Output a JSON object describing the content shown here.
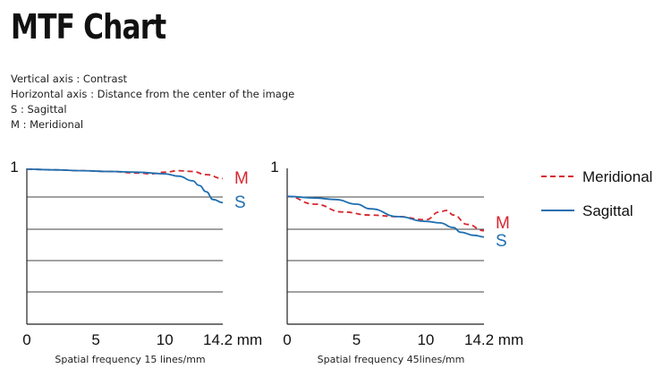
{
  "title": "MTF Chart",
  "notes": [
    "Vertical axis : Contrast",
    "Horizontal axis : Distance from the center of the image",
    "S : Sagittal",
    "M : Meridional"
  ],
  "colors": {
    "meridional": "#d7262e",
    "sagittal": "#1f6fb0",
    "grid": "#444444"
  },
  "legend": [
    {
      "label": "Meridional",
      "style": "dashed",
      "color": "#d7262e"
    },
    {
      "label": "Sagittal",
      "style": "solid",
      "color": "#1f6fb0"
    }
  ],
  "chart_data": [
    {
      "type": "line",
      "xlabel": "Spatial frequency 15 lines/mm",
      "ylabel": "",
      "xlim": [
        0,
        14.2
      ],
      "ylim": [
        0,
        1
      ],
      "x_ticks": [
        "0",
        "5",
        "10",
        "14.2 mm"
      ],
      "x_tick_values": [
        0,
        5,
        10,
        14.2
      ],
      "y_ticks": [
        "1"
      ],
      "grid": "horizontal",
      "series": [
        {
          "name": "M",
          "style": "dashed",
          "x": [
            0,
            2,
            4,
            6,
            8,
            9,
            10,
            11,
            12,
            13,
            14.2
          ],
          "y": [
            0.995,
            0.99,
            0.985,
            0.98,
            0.97,
            0.965,
            0.975,
            0.985,
            0.98,
            0.96,
            0.935
          ]
        },
        {
          "name": "S",
          "style": "solid",
          "x": [
            0,
            2,
            4,
            6,
            8,
            10,
            11,
            12,
            12.5,
            13,
            13.5,
            14.2
          ],
          "y": [
            0.995,
            0.99,
            0.985,
            0.98,
            0.975,
            0.965,
            0.95,
            0.92,
            0.89,
            0.85,
            0.8,
            0.78
          ]
        }
      ]
    },
    {
      "type": "line",
      "xlabel": "Spatial frequency 45lines/mm",
      "ylabel": "",
      "xlim": [
        0,
        14.2
      ],
      "ylim": [
        0,
        1
      ],
      "x_ticks": [
        "0",
        "5",
        "10",
        "14.2 mm"
      ],
      "x_tick_values": [
        0,
        5,
        10,
        14.2
      ],
      "y_ticks": [
        "1"
      ],
      "grid": "horizontal",
      "series": [
        {
          "name": "M",
          "style": "dashed",
          "x": [
            0,
            2,
            4,
            6,
            8,
            10,
            11,
            11.5,
            12,
            13,
            14.2
          ],
          "y": [
            0.82,
            0.77,
            0.72,
            0.7,
            0.69,
            0.67,
            0.72,
            0.73,
            0.7,
            0.64,
            0.6
          ]
        },
        {
          "name": "S",
          "style": "solid",
          "x": [
            0,
            2,
            3.5,
            5,
            6,
            8,
            10,
            11,
            12,
            12.5,
            13.5,
            14.2
          ],
          "y": [
            0.82,
            0.81,
            0.8,
            0.77,
            0.74,
            0.69,
            0.66,
            0.65,
            0.62,
            0.59,
            0.57,
            0.56
          ]
        }
      ]
    }
  ]
}
